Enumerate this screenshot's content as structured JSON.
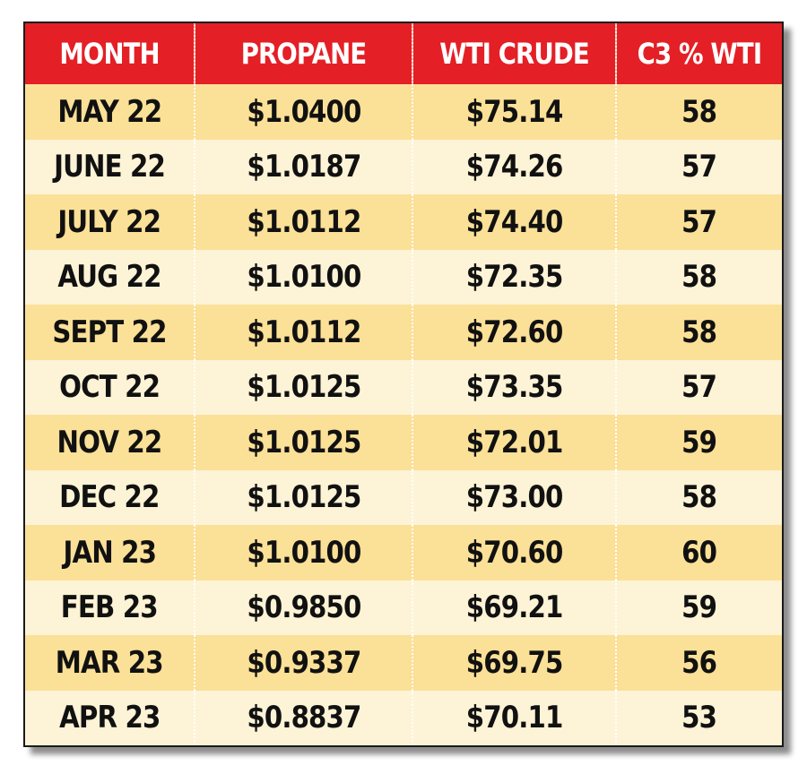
{
  "chart_data": {
    "type": "table",
    "columns": [
      "MONTH",
      "PROPANE",
      "WTI CRUDE",
      "C3 % WTI"
    ],
    "rows": [
      [
        "MAY 22",
        "$1.0400",
        "$75.14",
        "58"
      ],
      [
        "JUNE 22",
        "$1.0187",
        "$74.26",
        "57"
      ],
      [
        "JULY 22",
        "$1.0112",
        "$74.40",
        "57"
      ],
      [
        "AUG 22",
        "$1.0100",
        "$72.35",
        "58"
      ],
      [
        "SEPT 22",
        "$1.0112",
        "$72.60",
        "58"
      ],
      [
        "OCT 22",
        "$1.0125",
        "$73.35",
        "57"
      ],
      [
        "NOV 22",
        "$1.0125",
        "$72.01",
        "59"
      ],
      [
        "DEC 22",
        "$1.0125",
        "$73.00",
        "58"
      ],
      [
        "JAN 23",
        "$1.0100",
        "$70.60",
        "60"
      ],
      [
        "FEB 23",
        "$0.9850",
        "$69.21",
        "59"
      ],
      [
        "MAR 23",
        "$0.9337",
        "$69.75",
        "56"
      ],
      [
        "APR 23",
        "$0.8837",
        "$70.11",
        "53"
      ]
    ]
  },
  "colors": {
    "header_bg": "#e41f26",
    "header_text": "#ffffff",
    "row_odd": "#fbe097",
    "row_even": "#fdf3d6",
    "cell_text": "#111111"
  }
}
